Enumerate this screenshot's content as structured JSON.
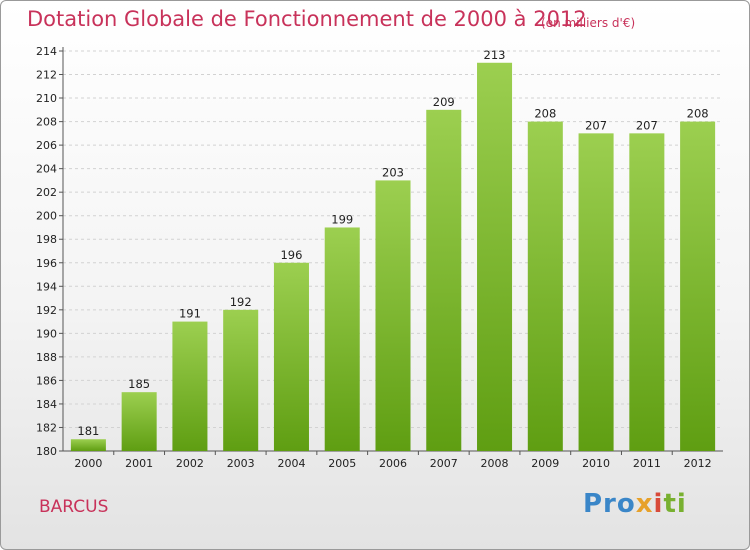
{
  "title": "Dotation Globale de Fonctionnement de 2000 à 2012",
  "unit_note": "(en milliers d'€)",
  "commune": "BARCUS",
  "logo": {
    "text": "Proxiti",
    "parts": [
      "Pro",
      "x",
      "i",
      "ti"
    ]
  },
  "colors": {
    "accent": "#c8325a",
    "bar_top": "#9ccf50",
    "bar_bottom": "#5f9e12"
  },
  "chart_data": {
    "type": "bar",
    "title": "Dotation Globale de Fonctionnement de 2000 à 2012",
    "subtitle": "(en milliers d'€)",
    "xlabel": "",
    "ylabel": "",
    "categories": [
      "2000",
      "2001",
      "2002",
      "2003",
      "2004",
      "2005",
      "2006",
      "2007",
      "2008",
      "2009",
      "2010",
      "2011",
      "2012"
    ],
    "values": [
      181,
      185,
      191,
      192,
      196,
      199,
      203,
      209,
      213,
      208,
      207,
      207,
      208
    ],
    "ylim": [
      180,
      214
    ],
    "yticks": [
      180,
      182,
      184,
      186,
      188,
      190,
      192,
      194,
      196,
      198,
      200,
      202,
      204,
      206,
      208,
      210,
      212,
      214
    ],
    "grid": true,
    "legend": "none"
  }
}
